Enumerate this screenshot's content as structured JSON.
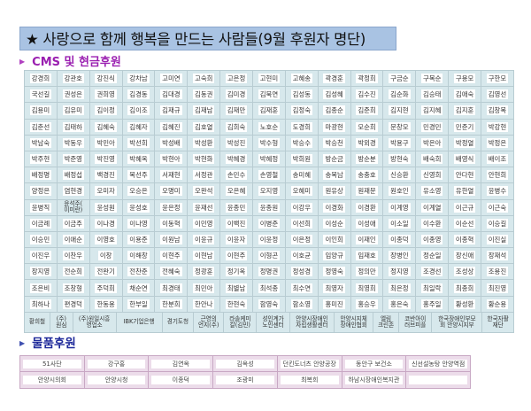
{
  "title": "★ 사랑으로 함께 행복을 만드는 사람들(9월 후원자 명단)",
  "cms_section": {
    "label": "CMS 및 현금후원",
    "rows": [
      [
        "강경희",
        "강관호",
        "강진식",
        "강차남",
        "고미연",
        "고숙희",
        "고은정",
        "고현미",
        "고혜송",
        "곽경훈",
        "곽정희",
        "구금순",
        "구복순",
        "구용모",
        "구한모"
      ],
      [
        "국선길",
        "권성은",
        "권희영",
        "김경동",
        "김대경",
        "김동권",
        "김미경",
        "김묵연",
        "김성동",
        "김성혜",
        "김수진",
        "김순화",
        "김승태",
        "김애숙",
        "김영선"
      ],
      [
        "김용미",
        "김유미",
        "김이정",
        "김이조",
        "김재규",
        "김재남",
        "김재만",
        "김재훈",
        "김정숙",
        "김종순",
        "김준희",
        "김지현",
        "김지혜",
        "김지훈",
        "김창복"
      ],
      [
        "김춘선",
        "김태하",
        "김혜숙",
        "김혜자",
        "김혜진",
        "김호열",
        "김희숙",
        "노호순",
        "도경희",
        "마광현",
        "모순희",
        "문창모",
        "민경민",
        "민준기",
        "박강현"
      ],
      [
        "박남숙",
        "박동우",
        "박민아",
        "박선희",
        "박성배",
        "박성환",
        "박성진",
        "박수형",
        "박승수",
        "박승천",
        "박외경",
        "박용구",
        "박은아",
        "박정열",
        "박정은"
      ],
      [
        "박주현",
        "박준영",
        "박진영",
        "박혜옥",
        "박현아",
        "박현화",
        "박혜경",
        "박혜정",
        "박희원",
        "방순금",
        "방순분",
        "방현숙",
        "배숙희",
        "배영식",
        "배이조"
      ],
      [
        "배정명",
        "배정섭",
        "백경진",
        "복선주",
        "서재현",
        "서정관",
        "손민수",
        "손영철",
        "송미혜",
        "송복남",
        "송충호",
        "신승환",
        "신영희",
        "안다현",
        "안현희"
      ],
      [
        "양정은",
        "염현경",
        "오미자",
        "오승은",
        "오명미",
        "오완석",
        "오은혜",
        "오지영",
        "오혜미",
        "원유상",
        "원재문",
        "원호인",
        "유소영",
        "유한열",
        "윤병수"
      ],
      [
        "윤병직",
        "윤석주(\n이미란)",
        "윤성원",
        "윤성호",
        "윤은정",
        "윤재선",
        "윤종민",
        "윤종원",
        "이강우",
        "이경화",
        "이경환",
        "이계영",
        "이계열",
        "이근규",
        "이근숙"
      ],
      [
        "이금례",
        "이금주",
        "이나경",
        "이나영",
        "이동혁",
        "이민영",
        "이백진",
        "이병준",
        "이선희",
        "이성순",
        "이성애",
        "이소일",
        "이수환",
        "이순선",
        "이승길"
      ],
      [
        "이승민",
        "이애순",
        "이영호",
        "이용준",
        "이원남",
        "이윤규",
        "이윤자",
        "이윤정",
        "이은정",
        "이인희",
        "이재인",
        "이종덕",
        "이종영",
        "이종혁",
        "이진실"
      ],
      [
        "이진우",
        "이찬우",
        "이창",
        "이해창",
        "이현주",
        "이현남",
        "이현주",
        "이형곤",
        "이호균",
        "임양규",
        "임재호",
        "장병인",
        "정순일",
        "장신애",
        "장재석"
      ],
      [
        "장지영",
        "전순희",
        "전완기",
        "전찬준",
        "전혜숙",
        "정광훈",
        "정기옥",
        "정명권",
        "정성경",
        "정영숙",
        "정의만",
        "정지영",
        "조경선",
        "조성상",
        "조용진"
      ],
      [
        "조은비",
        "조창형",
        "주덕희",
        "채순연",
        "최경태",
        "최민아",
        "최별남",
        "최석종",
        "최수연",
        "최영자",
        "최영희",
        "최은정",
        "최일락",
        "최종희",
        "최진영"
      ],
      [
        "최하나",
        "편경덕",
        "한동용",
        "한부일",
        "한분희",
        "한안나",
        "한현숙",
        "함영숙",
        "함소영",
        "홍미진",
        "홍승우",
        "홍은숙",
        "홍주일",
        "황성환",
        "황순용"
      ]
    ],
    "last_row": [
      "황희철",
      "(주)\n원심",
      "(주)원일시흥\n영업소",
      "IBK기업은행",
      "경기도청",
      "근영의\n언지(주)",
      "라솔케미\n칼(김민)",
      "성인계가\n노인센터",
      "안양시장애인\n자립생활센터",
      "안양시지체\n장애인협회",
      "엘림\n크린존",
      "코반아이\n러브피플",
      "한국장애인부모\n회 안양시지부",
      "한국자활\n재단"
    ]
  },
  "goods_section": {
    "label": "물품후원",
    "rows": [
      [
        "51사단",
        "강구홍",
        "김연옥",
        "김옥성",
        "던킨도너츠 안양공장",
        "동안구 보건소",
        "신선설농탕 안양역점"
      ],
      [
        "안양시의회",
        "안양시청",
        "이종덕",
        "조광미",
        "최복희",
        "하남시장애인복지관",
        ""
      ]
    ]
  },
  "colors": {
    "title_bg": "#a9c3e3",
    "cms_heading": "#9a1fb0",
    "goods_heading": "#1f2a9a",
    "cms_grid_bg": "#d7e8ec",
    "goods_grid_bg": "#ecdcea"
  }
}
